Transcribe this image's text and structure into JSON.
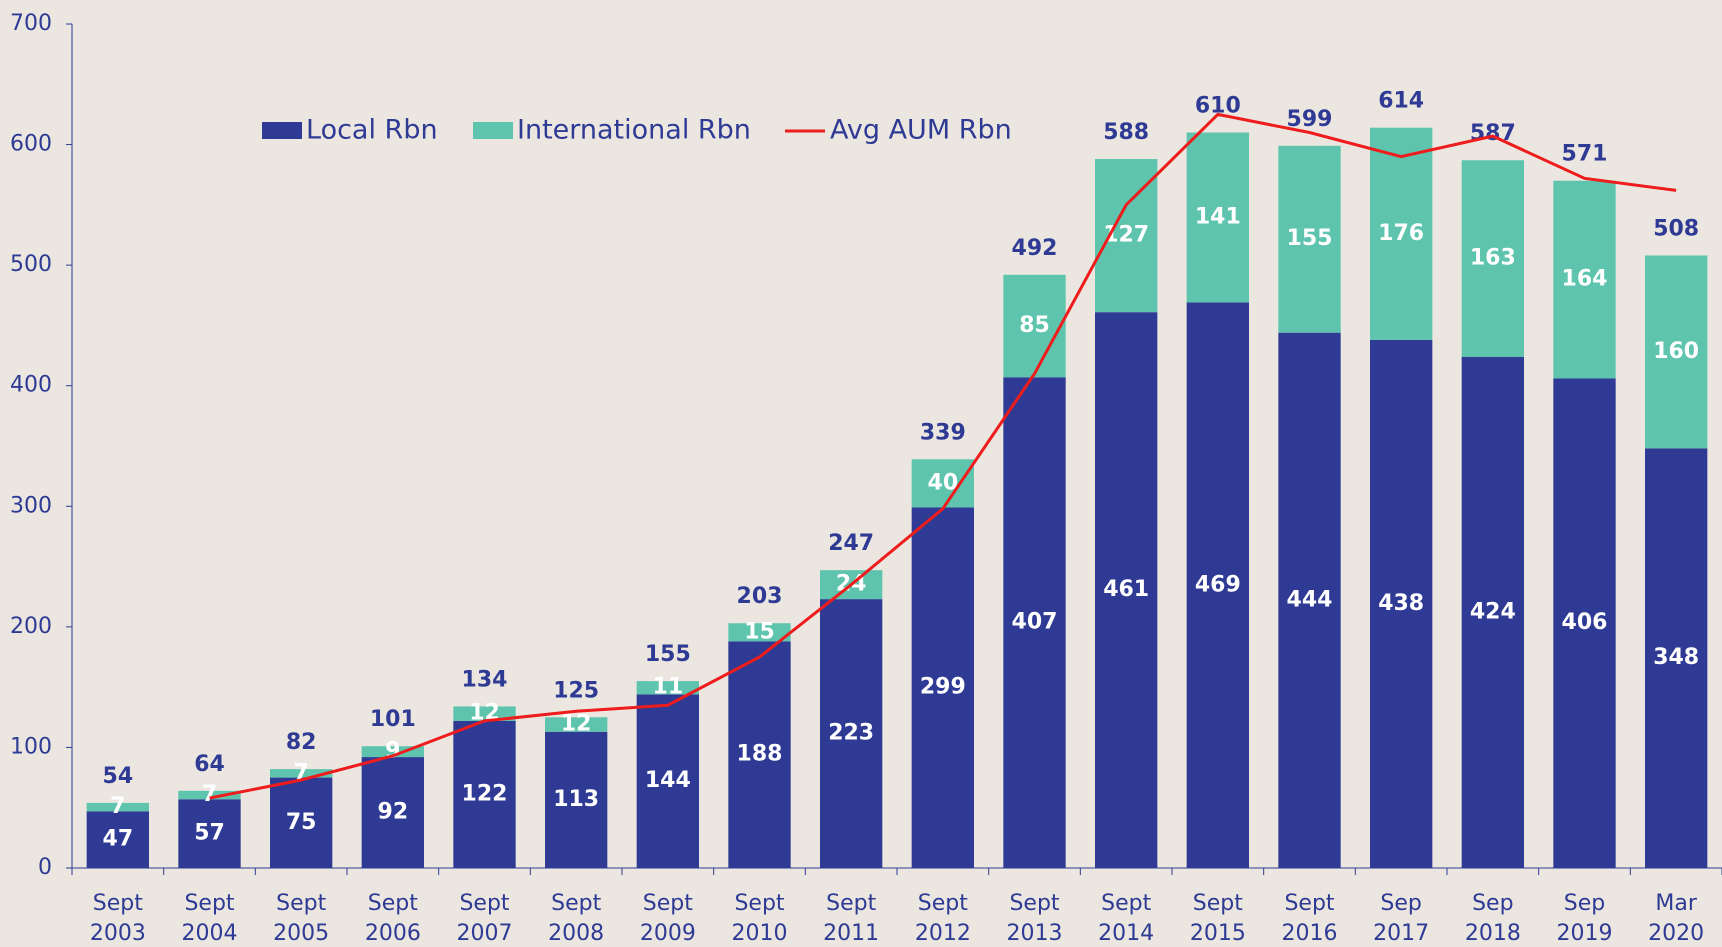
{
  "chart_data": {
    "type": "bar",
    "categories": [
      "Sept 2003",
      "Sept 2004",
      "Sept 2005",
      "Sept 2006",
      "Sept 2007",
      "Sept 2008",
      "Sept 2009",
      "Sept 2010",
      "Sept 2011",
      "Sept 2012",
      "Sept 2013",
      "Sept 2014",
      "Sept 2015",
      "Sept 2016",
      "Sep 2017",
      "Sep 2018",
      "Sep 2019",
      "Mar 2020"
    ],
    "series": [
      {
        "name": "Local Rbn",
        "color": "#2e3a94",
        "values": [
          47,
          57,
          75,
          92,
          122,
          113,
          144,
          188,
          223,
          299,
          407,
          461,
          469,
          444,
          438,
          424,
          406,
          348
        ]
      },
      {
        "name": "International Rbn",
        "color": "#5ec4ad",
        "values": [
          7,
          7,
          7,
          9,
          12,
          12,
          11,
          15,
          24,
          40,
          85,
          127,
          141,
          155,
          176,
          163,
          164,
          160
        ]
      },
      {
        "name": "Avg AUM Rbn",
        "type": "line",
        "color": "#ee1c1c",
        "values": [
          null,
          58,
          73,
          93,
          122,
          130,
          135,
          175,
          235,
          298,
          410,
          550,
          625,
          610,
          590,
          607,
          572,
          562
        ]
      }
    ],
    "totals": [
      54,
      64,
      82,
      101,
      134,
      125,
      155,
      203,
      247,
      339,
      492,
      588,
      610,
      599,
      614,
      587,
      571,
      508
    ],
    "ylim": [
      0,
      700
    ],
    "yticks": [
      0,
      100,
      200,
      300,
      400,
      500,
      600,
      700
    ],
    "stacked": true
  }
}
